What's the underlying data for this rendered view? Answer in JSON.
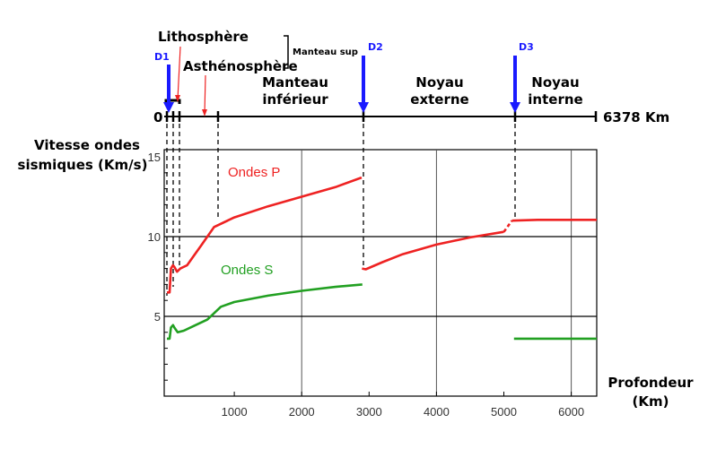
{
  "colors": {
    "p_wave": "#ee2222",
    "s_wave": "#22a022",
    "marker_blue": "#1a1aff",
    "axis": "#000000",
    "grid": "#555555"
  },
  "top_axis": {
    "start_label": "0",
    "end_label": "6378 Km",
    "layers": {
      "lithosphere": "Lithosphère",
      "asthenosphere": "Asthénosphère",
      "upper_mantle": "Manteau sup",
      "lower_mantle_line1": "Manteau",
      "lower_mantle_line2": "inférieur",
      "outer_core_line1": "Noyau",
      "outer_core_line2": "externe",
      "inner_core_line1": "Noyau",
      "inner_core_line2": "interne"
    },
    "discontinuities": [
      {
        "label": "D1",
        "depth": 30
      },
      {
        "label": "D2",
        "depth": 2900
      },
      {
        "label": "D3",
        "depth": 5100
      }
    ],
    "boundary_depths": [
      0,
      30,
      100,
      100,
      700,
      2900,
      5100,
      6378
    ]
  },
  "chart_data": {
    "type": "line",
    "ylabel_line1": "Vitesse ondes",
    "ylabel_line2": "sismiques (Km/s)",
    "xlabel_line1": "Profondeur",
    "xlabel_line2": "(Km)",
    "xlim": [
      0,
      6378
    ],
    "ylim": [
      0,
      15
    ],
    "x_ticks": [
      1000,
      2000,
      3000,
      4000,
      5000,
      6000
    ],
    "x_tick_labels": [
      "1000",
      "2000",
      "3000",
      "4000",
      "5000",
      "6000"
    ],
    "y_ticks": [
      5,
      10,
      15
    ],
    "y_tick_labels": [
      "5",
      "10",
      "15"
    ],
    "series": [
      {
        "name": "Ondes P",
        "color": "#ee2222",
        "segments": [
          [
            [
              0,
              6.5
            ],
            [
              40,
              6.5
            ],
            [
              60,
              8.0
            ],
            [
              90,
              8.2
            ],
            [
              110,
              8.1
            ],
            [
              150,
              7.8
            ],
            [
              200,
              8.0
            ],
            [
              300,
              8.2
            ],
            [
              400,
              8.8
            ],
            [
              500,
              9.4
            ],
            [
              600,
              10.0
            ],
            [
              700,
              10.6
            ],
            [
              1000,
              11.2
            ],
            [
              1500,
              11.9
            ],
            [
              2000,
              12.5
            ],
            [
              2500,
              13.1
            ],
            [
              2890,
              13.7
            ]
          ],
          [
            [
              2895,
              8.0
            ],
            [
              2950,
              7.95
            ],
            [
              3200,
              8.4
            ],
            [
              3500,
              8.9
            ],
            [
              4000,
              9.5
            ],
            [
              4500,
              9.95
            ],
            [
              5000,
              10.3
            ]
          ],
          [
            [
              5120,
              11.0
            ],
            [
              5500,
              11.05
            ],
            [
              6000,
              11.05
            ],
            [
              6378,
              11.05
            ]
          ]
        ],
        "dashed_segment": [
          [
            5000,
            10.3
          ],
          [
            5120,
            11.0
          ]
        ]
      },
      {
        "name": "Ondes S",
        "color": "#22a022",
        "segments": [
          [
            [
              0,
              3.6
            ],
            [
              40,
              3.6
            ],
            [
              60,
              4.3
            ],
            [
              90,
              4.45
            ],
            [
              110,
              4.3
            ],
            [
              160,
              4.0
            ],
            [
              250,
              4.1
            ],
            [
              400,
              4.4
            ],
            [
              600,
              4.8
            ],
            [
              700,
              5.2
            ],
            [
              800,
              5.6
            ],
            [
              1000,
              5.9
            ],
            [
              1500,
              6.3
            ],
            [
              2000,
              6.6
            ],
            [
              2500,
              6.85
            ],
            [
              2900,
              7.0
            ]
          ],
          [
            [
              5150,
              3.6
            ],
            [
              6378,
              3.6
            ]
          ]
        ]
      }
    ]
  }
}
